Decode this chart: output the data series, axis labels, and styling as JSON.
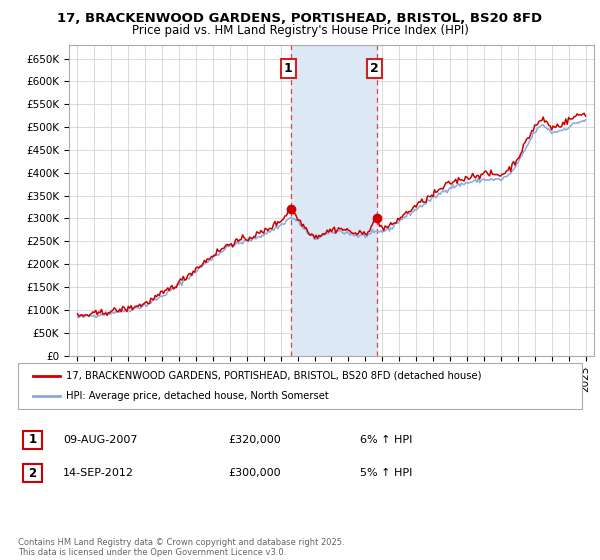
{
  "title_line1": "17, BRACKENWOOD GARDENS, PORTISHEAD, BRISTOL, BS20 8FD",
  "title_line2": "Price paid vs. HM Land Registry's House Price Index (HPI)",
  "yticks": [
    0,
    50000,
    100000,
    150000,
    200000,
    250000,
    300000,
    350000,
    400000,
    450000,
    500000,
    550000,
    600000,
    650000
  ],
  "ytick_labels": [
    "£0",
    "£50K",
    "£100K",
    "£150K",
    "£200K",
    "£250K",
    "£300K",
    "£350K",
    "£400K",
    "£450K",
    "£500K",
    "£550K",
    "£600K",
    "£650K"
  ],
  "xticks": [
    1995,
    1996,
    1997,
    1998,
    1999,
    2000,
    2001,
    2002,
    2003,
    2004,
    2005,
    2006,
    2007,
    2008,
    2009,
    2010,
    2011,
    2012,
    2013,
    2014,
    2015,
    2016,
    2017,
    2018,
    2019,
    2020,
    2021,
    2022,
    2023,
    2024,
    2025
  ],
  "sale1_date": 2007.6,
  "sale1_price": 320000,
  "sale1_label": "1",
  "sale1_info": "09-AUG-2007",
  "sale1_amount": "£320,000",
  "sale1_hpi": "6% ↑ HPI",
  "sale2_date": 2012.7,
  "sale2_price": 300000,
  "sale2_label": "2",
  "sale2_info": "14-SEP-2012",
  "sale2_amount": "£300,000",
  "sale2_hpi": "5% ↑ HPI",
  "shade_color": "#dde8f5",
  "line_color_property": "#cc0000",
  "line_color_hpi": "#88aadd",
  "marker_color": "#cc0000",
  "sale_line_color": "#dd4444",
  "legend_label1": "17, BRACKENWOOD GARDENS, PORTISHEAD, BRISTOL, BS20 8FD (detached house)",
  "legend_label2": "HPI: Average price, detached house, North Somerset",
  "footer_text": "Contains HM Land Registry data © Crown copyright and database right 2025.\nThis data is licensed under the Open Government Licence v3.0.",
  "background_color": "#ffffff",
  "grid_color": "#cccccc",
  "ylim": [
    0,
    680000
  ],
  "xlim": [
    1994.5,
    2025.5
  ]
}
